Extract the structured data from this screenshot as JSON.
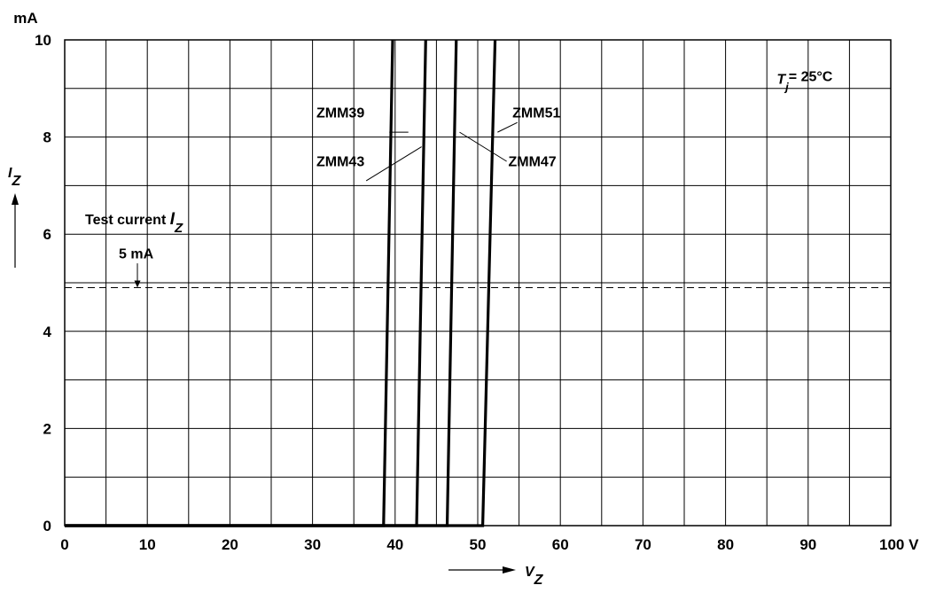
{
  "chart_data": {
    "type": "line",
    "x_unit": "V",
    "y_unit": "mA",
    "xlim": [
      0,
      100
    ],
    "ylim": [
      0,
      10
    ],
    "x_ticks": [
      "0",
      "10",
      "20",
      "30",
      "40",
      "50",
      "60",
      "70",
      "80",
      "90",
      "100"
    ],
    "y_ticks": [
      "0",
      "2",
      "4",
      "6",
      "8",
      "10"
    ],
    "x_tick_unit_suffix": "V",
    "grid": true,
    "xlabel": {
      "symbol": "V",
      "subscript": "Z"
    },
    "ylabel": {
      "symbol": "I",
      "subscript": "Z"
    },
    "condition": {
      "symbol": "T",
      "subscript": "j",
      "text": "= 25°C"
    },
    "test_current": {
      "label": "Test current",
      "symbol": "I",
      "subscript": "Z",
      "value_label": "5 mA",
      "y": 4.9,
      "arrow_x": 8.8
    },
    "series": [
      {
        "name": "ZMM39",
        "points": [
          [
            0,
            0
          ],
          [
            38.6,
            0
          ],
          [
            39.7,
            10
          ]
        ]
      },
      {
        "name": "ZMM43",
        "points": [
          [
            0,
            0
          ],
          [
            42.6,
            0
          ],
          [
            43.7,
            10
          ]
        ]
      },
      {
        "name": "ZMM47",
        "points": [
          [
            0,
            0
          ],
          [
            46.3,
            0
          ],
          [
            47.4,
            10
          ]
        ]
      },
      {
        "name": "ZMM51",
        "points": [
          [
            0,
            0
          ],
          [
            50.6,
            0
          ],
          [
            52.1,
            10
          ]
        ]
      }
    ],
    "series_labels": [
      {
        "series": "ZMM39",
        "text_pos": [
          32,
          8.4
        ],
        "anchor": "end",
        "leader": [
          [
            40.8,
            8.2
          ],
          [
            41.6,
            8.1
          ]
        ],
        "leader_to": [
          39.3,
          8.1
        ]
      },
      {
        "series": "ZMM43",
        "text_pos": [
          32,
          7.4
        ],
        "anchor": "end",
        "leader": [
          [
            36.5,
            7.1
          ]
        ],
        "leader_to": [
          43.2,
          7.8
        ]
      },
      {
        "series": "ZMM47",
        "text_pos": [
          53.7,
          7.4
        ],
        "anchor": "start",
        "leader": [
          [
            53.5,
            7.5
          ]
        ],
        "leader_to": [
          47.8,
          8.1
        ]
      },
      {
        "series": "ZMM51",
        "text_pos": [
          54.2,
          8.4
        ],
        "anchor": "start",
        "leader": [
          [
            54.8,
            8.3
          ]
        ],
        "leader_to": [
          52.4,
          8.1
        ]
      }
    ]
  }
}
